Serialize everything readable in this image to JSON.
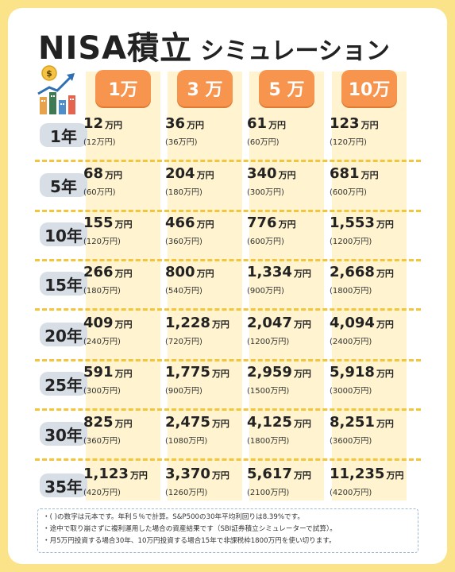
{
  "title": {
    "main": "NISA積立",
    "sub": "シミュレーション"
  },
  "icon": "growth-chart-money-icon",
  "columns": [
    {
      "label": "1万"
    },
    {
      "label": "3 万"
    },
    {
      "label": "5 万"
    },
    {
      "label": "10万"
    }
  ],
  "unit": "万円",
  "rows": [
    {
      "year": "1年",
      "cells": [
        {
          "value": "12",
          "principal": "(12万円)"
        },
        {
          "value": "36",
          "principal": "(36万円)"
        },
        {
          "value": "61",
          "principal": "(60万円)"
        },
        {
          "value": "123",
          "principal": "(120万円)"
        }
      ]
    },
    {
      "year": "5年",
      "cells": [
        {
          "value": "68",
          "principal": "(60万円)"
        },
        {
          "value": "204",
          "principal": "(180万円)"
        },
        {
          "value": "340",
          "principal": "(300万円)"
        },
        {
          "value": "681",
          "principal": "(600万円)"
        }
      ]
    },
    {
      "year": "10年",
      "cells": [
        {
          "value": "155",
          "principal": "(120万円)"
        },
        {
          "value": "466",
          "principal": "(360万円)"
        },
        {
          "value": "776",
          "principal": "(600万円)"
        },
        {
          "value": "1,553",
          "principal": "(1200万円)"
        }
      ]
    },
    {
      "year": "15年",
      "cells": [
        {
          "value": "266",
          "principal": "(180万円)"
        },
        {
          "value": "800",
          "principal": "(540万円)"
        },
        {
          "value": "1,334",
          "principal": "(900万円)"
        },
        {
          "value": "2,668",
          "principal": "(1800万円)"
        }
      ]
    },
    {
      "year": "20年",
      "cells": [
        {
          "value": "409",
          "principal": "(240万円)"
        },
        {
          "value": "1,228",
          "principal": "(720万円)"
        },
        {
          "value": "2,047",
          "principal": "(1200万円)"
        },
        {
          "value": "4,094",
          "principal": "(2400万円)"
        }
      ]
    },
    {
      "year": "25年",
      "cells": [
        {
          "value": "591",
          "principal": "(300万円)"
        },
        {
          "value": "1,775",
          "principal": "(900万円)"
        },
        {
          "value": "2,959",
          "principal": "(1500万円)"
        },
        {
          "value": "5,918",
          "principal": "(3000万円)"
        }
      ]
    },
    {
      "year": "30年",
      "cells": [
        {
          "value": "825",
          "principal": "(360万円)"
        },
        {
          "value": "2,475",
          "principal": "(1080万円)"
        },
        {
          "value": "4,125",
          "principal": "(1800万円)"
        },
        {
          "value": "8,251",
          "principal": "(3600万円)"
        }
      ]
    },
    {
      "year": "35年",
      "cells": [
        {
          "value": "1,123",
          "principal": "(420万円)"
        },
        {
          "value": "3,370",
          "principal": "(1260万円)"
        },
        {
          "value": "5,617",
          "principal": "(2100万円)"
        },
        {
          "value": "11,235",
          "principal": "(4200万円)"
        }
      ]
    }
  ],
  "notes": [
    "・( )の数字は元本です。年利５％で計算。S&P500の30年平均利回りは8.39%です。",
    "・途中で取り崩さずに複利運用した場合の資産結果です（SBI証券積立シミュレーターで試算）。",
    "・月5万円投資する場合30年、10万円投資する場合15年で非課税枠1800万円を使い切ります。"
  ],
  "colors": {
    "background": "#FBE38A",
    "column_highlight": "#FFF4CF",
    "header_orange": "#F7944D",
    "year_pill": "#D8DEE6",
    "separator": "#F2C53A"
  }
}
